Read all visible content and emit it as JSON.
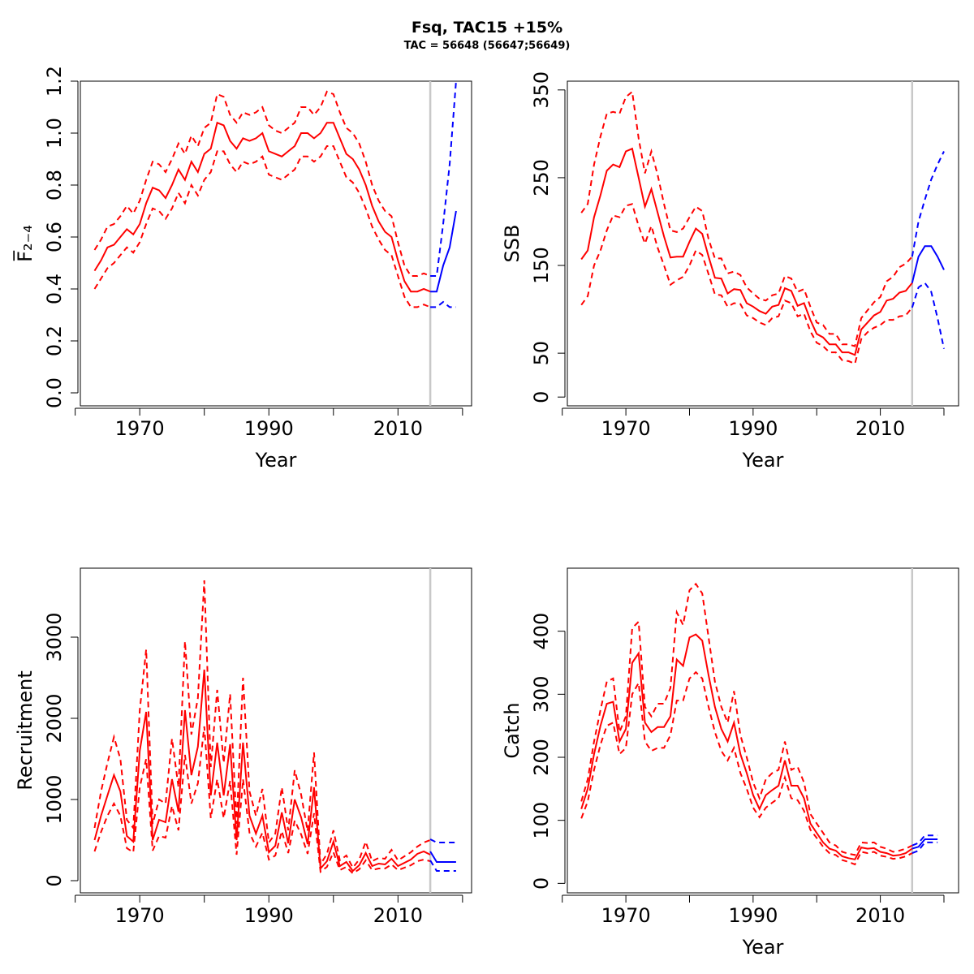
{
  "title": "Fsq, TAC15 +15%",
  "subtitle": "TAC = 56648 (56647;56649)",
  "colors": {
    "historic": "#ff0000",
    "forecast": "#0000ff",
    "divider": "#c8c8c8"
  },
  "chart_data": [
    {
      "type": "line",
      "id": "f",
      "ylabel": "F̅₂₋₄",
      "xlabel": "Year",
      "xlim": [
        1960.8,
        2021.4
      ],
      "ylim": [
        -0.05,
        1.2
      ],
      "xticks": [
        1970,
        1990,
        2010
      ],
      "xticks_minor": [
        1960,
        1970,
        1980,
        1990,
        2000,
        2010,
        2020
      ],
      "yticks": [
        0.0,
        0.2,
        0.4,
        0.6,
        0.8,
        1.0,
        1.2
      ],
      "ytick_labels": [
        "0.0",
        "0.2",
        "0.4",
        "0.6",
        "0.8",
        "1.0",
        "1.2"
      ],
      "divider_year": 2015,
      "historic": {
        "x": [
          1963,
          1964,
          1965,
          1966,
          1967,
          1968,
          1969,
          1970,
          1971,
          1972,
          1973,
          1974,
          1975,
          1976,
          1977,
          1978,
          1979,
          1980,
          1981,
          1982,
          1983,
          1984,
          1985,
          1986,
          1987,
          1988,
          1989,
          1990,
          1991,
          1992,
          1993,
          1994,
          1995,
          1996,
          1997,
          1998,
          1999,
          2000,
          2001,
          2002,
          2003,
          2004,
          2005,
          2006,
          2007,
          2008,
          2009,
          2010,
          2011,
          2012,
          2013,
          2014,
          2015
        ],
        "mid": [
          0.47,
          0.51,
          0.56,
          0.57,
          0.6,
          0.63,
          0.61,
          0.65,
          0.73,
          0.79,
          0.78,
          0.75,
          0.8,
          0.86,
          0.82,
          0.89,
          0.85,
          0.92,
          0.94,
          1.04,
          1.03,
          0.97,
          0.94,
          0.98,
          0.97,
          0.98,
          1.0,
          0.93,
          0.92,
          0.91,
          0.93,
          0.95,
          1.0,
          1.0,
          0.98,
          1.0,
          1.04,
          1.04,
          0.98,
          0.92,
          0.9,
          0.86,
          0.8,
          0.72,
          0.66,
          0.62,
          0.6,
          0.51,
          0.43,
          0.39,
          0.39,
          0.4,
          0.39
        ],
        "upper": [
          0.55,
          0.59,
          0.64,
          0.65,
          0.68,
          0.72,
          0.69,
          0.74,
          0.82,
          0.89,
          0.88,
          0.85,
          0.9,
          0.96,
          0.92,
          0.99,
          0.95,
          1.02,
          1.04,
          1.15,
          1.14,
          1.07,
          1.04,
          1.08,
          1.07,
          1.08,
          1.1,
          1.03,
          1.01,
          1.0,
          1.02,
          1.04,
          1.1,
          1.1,
          1.07,
          1.1,
          1.16,
          1.15,
          1.08,
          1.02,
          1.0,
          0.96,
          0.89,
          0.8,
          0.74,
          0.7,
          0.68,
          0.58,
          0.49,
          0.45,
          0.45,
          0.46,
          0.45
        ],
        "lower": [
          0.4,
          0.44,
          0.48,
          0.5,
          0.53,
          0.56,
          0.54,
          0.58,
          0.65,
          0.71,
          0.7,
          0.67,
          0.71,
          0.77,
          0.73,
          0.8,
          0.76,
          0.82,
          0.85,
          0.93,
          0.93,
          0.88,
          0.85,
          0.89,
          0.88,
          0.89,
          0.91,
          0.84,
          0.83,
          0.82,
          0.84,
          0.86,
          0.91,
          0.91,
          0.89,
          0.91,
          0.95,
          0.95,
          0.89,
          0.83,
          0.81,
          0.77,
          0.71,
          0.64,
          0.59,
          0.55,
          0.53,
          0.45,
          0.37,
          0.33,
          0.33,
          0.34,
          0.33
        ]
      },
      "forecast": {
        "x": [
          2015,
          2016,
          2017,
          2018,
          2019
        ],
        "mid": [
          0.39,
          0.39,
          0.49,
          0.56,
          0.7
        ],
        "upper": [
          0.45,
          0.45,
          0.65,
          0.88,
          1.2
        ],
        "lower": [
          0.33,
          0.33,
          0.35,
          0.33,
          0.33
        ]
      }
    },
    {
      "type": "line",
      "id": "ssb",
      "ylabel": "SSB",
      "xlabel": "Year",
      "xlim": [
        1960.8,
        2022.3
      ],
      "ylim": [
        -10,
        360
      ],
      "xticks": [
        1970,
        1990,
        2010
      ],
      "xticks_minor": [
        1960,
        1970,
        1980,
        1990,
        2000,
        2010,
        2020
      ],
      "yticks": [
        0,
        50,
        150,
        250,
        350
      ],
      "ytick_labels": [
        "0",
        "50",
        "150",
        "250",
        "350"
      ],
      "divider_year": 2015,
      "historic": {
        "x": [
          1963,
          1964,
          1965,
          1966,
          1967,
          1968,
          1969,
          1970,
          1971,
          1972,
          1973,
          1974,
          1975,
          1976,
          1977,
          1978,
          1979,
          1980,
          1981,
          1982,
          1983,
          1984,
          1985,
          1986,
          1987,
          1988,
          1989,
          1990,
          1991,
          1992,
          1993,
          1994,
          1995,
          1996,
          1997,
          1998,
          1999,
          2000,
          2001,
          2002,
          2003,
          2004,
          2005,
          2006,
          2007,
          2008,
          2009,
          2010,
          2011,
          2012,
          2013,
          2014,
          2015
        ],
        "mid": [
          157,
          167,
          205,
          230,
          258,
          265,
          262,
          280,
          283,
          250,
          217,
          237,
          210,
          183,
          159,
          160,
          160,
          177,
          192,
          186,
          160,
          136,
          135,
          118,
          123,
          122,
          107,
          103,
          98,
          95,
          103,
          105,
          124,
          121,
          104,
          107,
          88,
          72,
          68,
          60,
          60,
          51,
          51,
          48,
          77,
          85,
          93,
          97,
          110,
          112,
          119,
          121,
          130
        ],
        "upper": [
          210,
          220,
          265,
          297,
          323,
          325,
          323,
          342,
          348,
          295,
          255,
          280,
          253,
          220,
          190,
          188,
          192,
          205,
          217,
          212,
          180,
          158,
          158,
          141,
          143,
          139,
          125,
          118,
          112,
          110,
          116,
          118,
          138,
          135,
          120,
          123,
          103,
          85,
          82,
          72,
          72,
          60,
          60,
          58,
          90,
          99,
          108,
          114,
          132,
          137,
          148,
          152,
          160
        ],
        "lower": [
          105,
          115,
          150,
          167,
          190,
          207,
          205,
          218,
          220,
          195,
          175,
          195,
          170,
          150,
          128,
          133,
          137,
          150,
          167,
          162,
          140,
          117,
          116,
          103,
          107,
          106,
          93,
          90,
          85,
          82,
          90,
          92,
          110,
          107,
          92,
          95,
          75,
          62,
          58,
          51,
          51,
          42,
          41,
          38,
          66,
          74,
          79,
          82,
          88,
          88,
          92,
          93,
          102
        ]
      },
      "forecast": {
        "x": [
          2015,
          2016,
          2017,
          2018,
          2019,
          2020
        ],
        "mid": [
          130,
          160,
          172,
          172,
          160,
          145
        ],
        "upper": [
          160,
          200,
          225,
          248,
          265,
          280
        ],
        "lower": [
          102,
          125,
          130,
          120,
          90,
          55
        ]
      }
    },
    {
      "type": "line",
      "id": "recruitment",
      "ylabel": "Recruitment",
      "xlabel": "",
      "xlim": [
        1960.8,
        2021.4
      ],
      "ylim": [
        -150,
        3850
      ],
      "xticks": [
        1970,
        1990,
        2010
      ],
      "xticks_minor": [
        1960,
        1970,
        1980,
        1990,
        2000,
        2010,
        2020
      ],
      "yticks": [
        0,
        1000,
        2000,
        3000
      ],
      "ytick_labels": [
        "0",
        "1000",
        "2000",
        "3000"
      ],
      "divider_year": 2015,
      "historic": {
        "x": [
          1963,
          1964,
          1965,
          1966,
          1967,
          1968,
          1969,
          1970,
          1971,
          1972,
          1973,
          1974,
          1975,
          1976,
          1977,
          1978,
          1979,
          1980,
          1981,
          1982,
          1983,
          1984,
          1985,
          1986,
          1987,
          1988,
          1989,
          1990,
          1991,
          1992,
          1993,
          1994,
          1995,
          1996,
          1997,
          1998,
          1999,
          2000,
          2001,
          2002,
          2003,
          2004,
          2005,
          2006,
          2007,
          2008,
          2009,
          2010,
          2011,
          2012,
          2013,
          2014,
          2015
        ],
        "mid": [
          500,
          800,
          1050,
          1300,
          1100,
          550,
          480,
          1600,
          2080,
          500,
          750,
          720,
          1250,
          850,
          2100,
          1300,
          1650,
          2600,
          1050,
          1700,
          1050,
          1680,
          500,
          1700,
          800,
          580,
          800,
          350,
          430,
          840,
          460,
          1000,
          780,
          450,
          1150,
          150,
          240,
          480,
          180,
          230,
          120,
          190,
          340,
          180,
          210,
          200,
          270,
          180,
          220,
          260,
          330,
          360,
          320
        ],
        "upper": [
          650,
          1100,
          1450,
          1770,
          1500,
          750,
          650,
          2100,
          2850,
          700,
          1000,
          950,
          1750,
          1150,
          2950,
          1800,
          2250,
          3700,
          1400,
          2350,
          1450,
          2300,
          700,
          2500,
          1100,
          800,
          1130,
          470,
          580,
          1150,
          620,
          1360,
          1060,
          610,
          1580,
          200,
          330,
          620,
          250,
          310,
          160,
          260,
          480,
          240,
          280,
          270,
          380,
          250,
          300,
          350,
          420,
          470,
          500
        ],
        "lower": [
          360,
          600,
          800,
          950,
          800,
          400,
          350,
          1150,
          1500,
          370,
          550,
          530,
          920,
          620,
          1550,
          950,
          1200,
          1900,
          770,
          1250,
          770,
          1230,
          320,
          1250,
          590,
          420,
          590,
          260,
          310,
          610,
          340,
          740,
          570,
          330,
          830,
          110,
          170,
          350,
          130,
          170,
          90,
          140,
          250,
          130,
          150,
          150,
          200,
          130,
          160,
          190,
          240,
          260,
          240
        ]
      },
      "forecast": {
        "x": [
          2015,
          2016,
          2017,
          2018,
          2019
        ],
        "mid": [
          360,
          230,
          230,
          230,
          230
        ],
        "upper": [
          510,
          470,
          470,
          470,
          470
        ],
        "lower": [
          250,
          120,
          120,
          120,
          120
        ]
      }
    },
    {
      "type": "line",
      "id": "catch",
      "ylabel": "Catch",
      "xlabel": "Year",
      "xlim": [
        1960.8,
        2022.3
      ],
      "ylim": [
        -15,
        500
      ],
      "xticks": [
        1970,
        1990,
        2010
      ],
      "xticks_minor": [
        1960,
        1970,
        1980,
        1990,
        2000,
        2010,
        2020
      ],
      "yticks": [
        0,
        100,
        200,
        300,
        400
      ],
      "ytick_labels": [
        "0",
        "100",
        "200",
        "300",
        "400"
      ],
      "divider_year": 2015,
      "historic": {
        "x": [
          1963,
          1964,
          1965,
          1966,
          1967,
          1968,
          1969,
          1970,
          1971,
          1972,
          1973,
          1974,
          1975,
          1976,
          1977,
          1978,
          1979,
          1980,
          1981,
          1982,
          1983,
          1984,
          1985,
          1986,
          1987,
          1988,
          1989,
          1990,
          1991,
          1992,
          1993,
          1994,
          1995,
          1996,
          1997,
          1998,
          1999,
          2000,
          2001,
          2002,
          2003,
          2004,
          2005,
          2006,
          2007,
          2008,
          2009,
          2010,
          2011,
          2012,
          2013,
          2014,
          2015
        ],
        "mid": [
          118,
          150,
          205,
          250,
          285,
          288,
          225,
          245,
          350,
          365,
          255,
          240,
          248,
          248,
          265,
          355,
          345,
          390,
          395,
          385,
          330,
          280,
          245,
          225,
          255,
          205,
          175,
          140,
          118,
          140,
          148,
          155,
          195,
          155,
          155,
          135,
          95,
          80,
          65,
          55,
          52,
          43,
          40,
          38,
          57,
          55,
          56,
          50,
          48,
          44,
          45,
          48,
          55
        ],
        "upper": [
          130,
          165,
          225,
          275,
          320,
          325,
          240,
          265,
          405,
          415,
          280,
          265,
          285,
          285,
          310,
          430,
          410,
          465,
          475,
          460,
          390,
          320,
          280,
          255,
          305,
          235,
          200,
          160,
          135,
          165,
          175,
          180,
          225,
          180,
          185,
          160,
          110,
          95,
          80,
          65,
          60,
          50,
          47,
          45,
          65,
          64,
          65,
          58,
          55,
          50,
          52,
          55,
          60
        ],
        "lower": [
          103,
          130,
          180,
          220,
          250,
          255,
          205,
          215,
          300,
          318,
          225,
          210,
          215,
          215,
          235,
          290,
          290,
          325,
          335,
          325,
          280,
          240,
          210,
          195,
          215,
          175,
          150,
          120,
          105,
          120,
          128,
          135,
          168,
          135,
          132,
          115,
          85,
          72,
          58,
          48,
          45,
          37,
          34,
          30,
          50,
          48,
          50,
          44,
          42,
          39,
          40,
          43,
          48
        ]
      },
      "forecast": {
        "x": [
          2015,
          2016,
          2017,
          2018,
          2019
        ],
        "mid": [
          55,
          58,
          70,
          70,
          70
        ],
        "upper": [
          60,
          64,
          76,
          76,
          76
        ],
        "lower": [
          48,
          52,
          65,
          65,
          65
        ]
      }
    }
  ]
}
